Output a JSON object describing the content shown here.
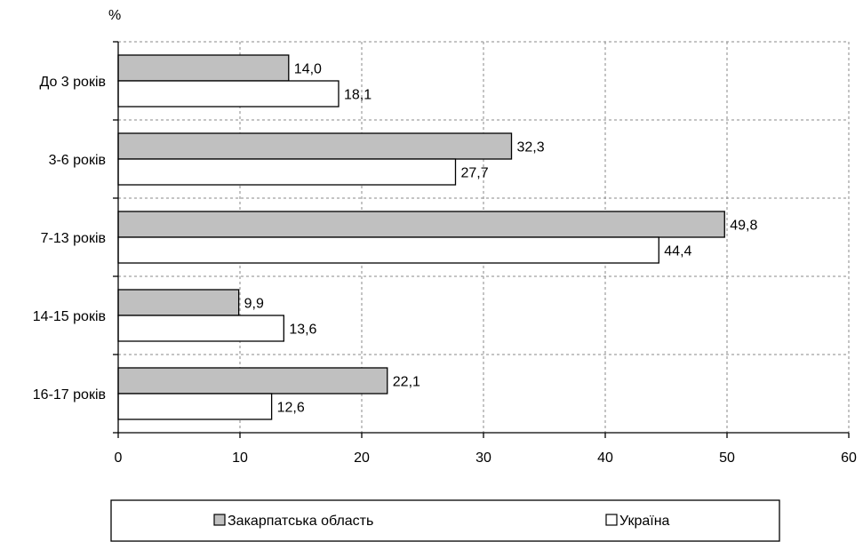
{
  "chart_data": {
    "type": "bar",
    "orientation": "horizontal",
    "unit_label": "%",
    "categories": [
      "До 3 років",
      "3-6 років",
      "7-13 років",
      "14-15 років",
      "16-17 років"
    ],
    "series": [
      {
        "name": "Закарпатська область",
        "color": "#c0c0c0",
        "values": [
          14.0,
          32.3,
          49.8,
          9.9,
          22.1
        ],
        "value_labels": [
          "14,0",
          "32,3",
          "49,8",
          "9,9",
          "22,1"
        ]
      },
      {
        "name": "Україна",
        "color": "#ffffff",
        "values": [
          18.1,
          27.7,
          44.4,
          13.6,
          12.6
        ],
        "value_labels": [
          "18,1",
          "27,7",
          "44,4",
          "13,6",
          "12,6"
        ]
      }
    ],
    "xlim": [
      0,
      60
    ],
    "x_ticks": [
      "0",
      "10",
      "20",
      "30",
      "40",
      "50",
      "60"
    ],
    "grid": "vertical dashed",
    "legend_position": "bottom"
  }
}
